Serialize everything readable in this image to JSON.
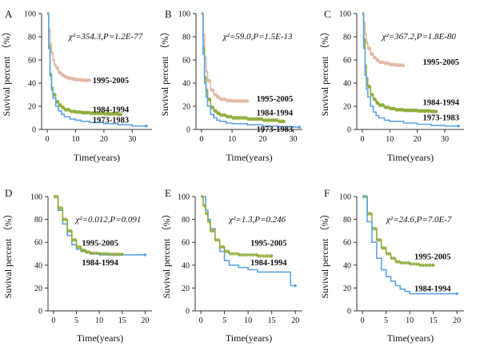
{
  "figure": {
    "colors": {
      "c1995": "#e3b8a4",
      "c1984": "#8fac3a",
      "c1973": "#5fa3e6",
      "axis": "#333333"
    }
  },
  "chart_data": [
    {
      "panel": "A",
      "type": "line",
      "stat": "χ²=354.3,P=1.2E-77",
      "xlabel": "Time(years)",
      "ylabel": "Suvival percent （%）",
      "xlim": [
        -2,
        37
      ],
      "ylim": [
        0,
        100
      ],
      "xticks": [
        0,
        10,
        20,
        30
      ],
      "yticks": [
        0,
        20,
        40,
        60,
        80,
        100
      ],
      "series": [
        {
          "name": "1995-2005",
          "color": "#e3b8a4",
          "censored": true,
          "x": [
            0,
            0.5,
            1,
            1.5,
            2,
            2.5,
            3,
            4,
            5,
            6,
            7,
            8,
            9,
            10,
            12,
            15
          ],
          "y": [
            100,
            86,
            74,
            66,
            60,
            56,
            53,
            49,
            47,
            45.5,
            44.5,
            44,
            43.5,
            43,
            42.5,
            42.5
          ]
        },
        {
          "name": "1984-1994",
          "color": "#8fac3a",
          "censored": true,
          "x": [
            0,
            0.5,
            1,
            1.5,
            2,
            3,
            4,
            5,
            6,
            8,
            10,
            12,
            15,
            20,
            25,
            26
          ],
          "y": [
            100,
            72,
            48,
            36,
            30,
            24,
            21,
            19,
            17,
            15.5,
            15,
            14.5,
            14,
            13.5,
            13,
            13
          ]
        },
        {
          "name": "1973-1983",
          "color": "#5fa3e6",
          "censored": false,
          "x": [
            0,
            0.5,
            1,
            1.5,
            2,
            3,
            4,
            5,
            6,
            8,
            10,
            12,
            15,
            20,
            25,
            30,
            35
          ],
          "y": [
            100,
            70,
            46,
            34,
            27,
            20,
            16,
            13,
            11,
            9,
            8,
            7,
            6,
            5,
            4,
            3,
            3
          ]
        }
      ],
      "labels": [
        {
          "text": "1995-2005",
          "x": 16,
          "y": 40
        },
        {
          "text": "1984-1994",
          "x": 16,
          "y": 15
        },
        {
          "text": "1973-1983",
          "x": 16,
          "y": 6
        }
      ]
    },
    {
      "panel": "B",
      "type": "line",
      "stat": "χ²=59.0,P=1.5E-13",
      "xlabel": "Time(years)",
      "ylabel": "Suvival percent （%）",
      "xlim": [
        -1.8,
        33
      ],
      "ylim": [
        0,
        100
      ],
      "xticks": [
        0,
        10,
        20,
        30
      ],
      "yticks": [
        0,
        20,
        40,
        60,
        80,
        100
      ],
      "series": [
        {
          "name": "1995-2005",
          "color": "#e3b8a4",
          "censored": true,
          "x": [
            0,
            0.5,
            1,
            1.5,
            2,
            3,
            4,
            5,
            6,
            8,
            10,
            12,
            15
          ],
          "y": [
            100,
            82,
            62,
            50,
            42,
            34,
            30,
            28,
            26,
            25,
            24.5,
            24.5,
            24.5
          ]
        },
        {
          "name": "1984-1994",
          "color": "#8fac3a",
          "censored": true,
          "x": [
            0,
            0.5,
            1,
            1.5,
            2,
            3,
            4,
            5,
            6,
            8,
            10,
            15,
            20,
            25,
            27
          ],
          "y": [
            100,
            70,
            45,
            34,
            26,
            19,
            16,
            14,
            12.5,
            11,
            10,
            9,
            8,
            7,
            7
          ]
        },
        {
          "name": "1973-1983",
          "color": "#5fa3e6",
          "censored": false,
          "x": [
            0,
            0.5,
            1,
            1.5,
            2,
            3,
            4,
            5,
            6,
            8,
            10,
            15,
            20,
            25,
            30,
            32
          ],
          "y": [
            100,
            65,
            40,
            28,
            20,
            13,
            10,
            8,
            7,
            5.5,
            5,
            4,
            3,
            2.5,
            2,
            2
          ]
        }
      ],
      "labels": [
        {
          "text": "1995-2005",
          "x": 18,
          "y": 24
        },
        {
          "text": "1984-1994",
          "x": 18,
          "y": 12
        },
        {
          "text": "1973-1983",
          "x": 18,
          "y": -2
        }
      ]
    },
    {
      "panel": "C",
      "type": "line",
      "stat": "χ²=367.2,P=1.8E-80",
      "xlabel": "Time(years)",
      "ylabel": "Suvival percent （%）",
      "xlim": [
        -2,
        37
      ],
      "ylim": [
        0,
        100
      ],
      "xticks": [
        0,
        10,
        20,
        30
      ],
      "yticks": [
        0,
        20,
        40,
        60,
        80,
        100
      ],
      "series": [
        {
          "name": "1995-2005",
          "color": "#e3b8a4",
          "censored": true,
          "x": [
            0,
            0.5,
            1,
            1.5,
            2,
            3,
            4,
            5,
            6,
            8,
            10,
            12,
            15
          ],
          "y": [
            100,
            92,
            82,
            75,
            70,
            65,
            62,
            60,
            58,
            57,
            56,
            55.5,
            55
          ]
        },
        {
          "name": "1984-1994",
          "color": "#8fac3a",
          "censored": true,
          "x": [
            0,
            0.5,
            1,
            1.5,
            2,
            3,
            4,
            5,
            6,
            8,
            10,
            12,
            15,
            20,
            25,
            27
          ],
          "y": [
            100,
            78,
            55,
            44,
            37,
            30,
            26,
            23,
            21,
            19,
            18,
            17,
            16.5,
            16,
            15.5,
            15.5
          ]
        },
        {
          "name": "1973-1983",
          "color": "#5fa3e6",
          "censored": false,
          "x": [
            0,
            0.5,
            1,
            1.5,
            2,
            3,
            4,
            5,
            6,
            8,
            10,
            15,
            20,
            25,
            30,
            35
          ],
          "y": [
            100,
            70,
            47,
            35,
            28,
            20,
            15,
            12,
            10,
            8,
            7,
            5.5,
            4.5,
            3.5,
            3,
            3
          ]
        }
      ],
      "labels": [
        {
          "text": "1995-2005",
          "x": 22,
          "y": 56
        },
        {
          "text": "1984-1994",
          "x": 22,
          "y": 21
        },
        {
          "text": "1973-1983",
          "x": 22,
          "y": 8
        }
      ]
    },
    {
      "panel": "D",
      "type": "line",
      "stat": "χ²=0.012,P=0.091",
      "xlabel": "Time(years)",
      "ylabel": "Suvival percent （%）",
      "xlim": [
        -1.2,
        21.5
      ],
      "ylim": [
        0,
        100
      ],
      "xticks": [
        0,
        5,
        10,
        15,
        20
      ],
      "yticks": [
        0,
        20,
        40,
        60,
        80,
        100
      ],
      "series": [
        {
          "name": "1984-1994",
          "color": "#5fa3e6",
          "censored": false,
          "x": [
            0,
            1,
            2,
            3,
            4,
            5,
            6,
            7,
            8,
            10,
            12,
            15,
            20
          ],
          "y": [
            100,
            88,
            76,
            66,
            58,
            54,
            52,
            51,
            50,
            49,
            49,
            49,
            49
          ]
        },
        {
          "name": "1995-2005",
          "color": "#8fac3a",
          "censored": true,
          "x": [
            0,
            1,
            2,
            3,
            4,
            5,
            6,
            7,
            8,
            10,
            12,
            15
          ],
          "y": [
            100,
            90,
            80,
            70,
            62,
            56,
            53,
            51.5,
            50.5,
            50,
            49.5,
            49.5
          ]
        }
      ],
      "labels": [
        {
          "text": "1995-2005",
          "x": 6.2,
          "y": 57
        },
        {
          "text": "1984-1994",
          "x": 6.2,
          "y": 40
        }
      ]
    },
    {
      "panel": "E",
      "type": "line",
      "stat": "χ²=1.3,P=0.246",
      "xlabel": "Time(years)",
      "ylabel": "Suvival percent （%）",
      "xlim": [
        -1.2,
        21.5
      ],
      "ylim": [
        0,
        100
      ],
      "xticks": [
        0,
        5,
        10,
        15,
        20
      ],
      "yticks": [
        0,
        20,
        40,
        60,
        80,
        100
      ],
      "series": [
        {
          "name": "1984-1994",
          "color": "#5fa3e6",
          "censored": false,
          "x": [
            0,
            0.5,
            1,
            1.5,
            2,
            3,
            4,
            5,
            6,
            8,
            10,
            12,
            15,
            18,
            19,
            19,
            20
          ],
          "y": [
            100,
            100,
            88,
            80,
            72,
            62,
            52,
            44,
            40,
            38,
            36,
            34,
            34,
            34,
            34,
            22,
            22
          ]
        },
        {
          "name": "1995-2005",
          "color": "#8fac3a",
          "censored": true,
          "x": [
            0,
            0.5,
            1,
            1.5,
            2,
            3,
            4,
            5,
            6,
            8,
            10,
            12,
            15
          ],
          "y": [
            100,
            92,
            85,
            78,
            70,
            62,
            56,
            52,
            50,
            49,
            49,
            48,
            48
          ]
        }
      ],
      "labels": [
        {
          "text": "1995-2005",
          "x": 10.5,
          "y": 57
        },
        {
          "text": "1984-1994",
          "x": 10.5,
          "y": 40
        }
      ]
    },
    {
      "panel": "F",
      "type": "line",
      "stat": "χ²=24.6,P=7.0E-7",
      "xlabel": "Time(years)",
      "ylabel": "Suvival percent （%）",
      "xlim": [
        -1.2,
        21.5
      ],
      "ylim": [
        0,
        100
      ],
      "xticks": [
        0,
        5,
        10,
        15,
        20
      ],
      "yticks": [
        0,
        20,
        40,
        60,
        80,
        100
      ],
      "series": [
        {
          "name": "1995-2005",
          "color": "#8fac3a",
          "censored": true,
          "x": [
            0,
            1,
            2,
            3,
            4,
            5,
            6,
            7,
            8,
            10,
            12,
            15
          ],
          "y": [
            100,
            85,
            72,
            62,
            55,
            50,
            46,
            43,
            42,
            41,
            40,
            40
          ]
        },
        {
          "name": "1984-1994",
          "color": "#5fa3e6",
          "censored": false,
          "x": [
            0,
            1,
            2,
            3,
            4,
            5,
            6,
            7,
            8,
            9,
            10,
            12,
            15,
            20
          ],
          "y": [
            100,
            78,
            60,
            46,
            36,
            30,
            26,
            22,
            19,
            17,
            15,
            15,
            15,
            15
          ]
        }
      ],
      "labels": [
        {
          "text": "1995-2005",
          "x": 11,
          "y": 45
        },
        {
          "text": "1984-1994",
          "x": 11,
          "y": 17
        }
      ]
    }
  ]
}
